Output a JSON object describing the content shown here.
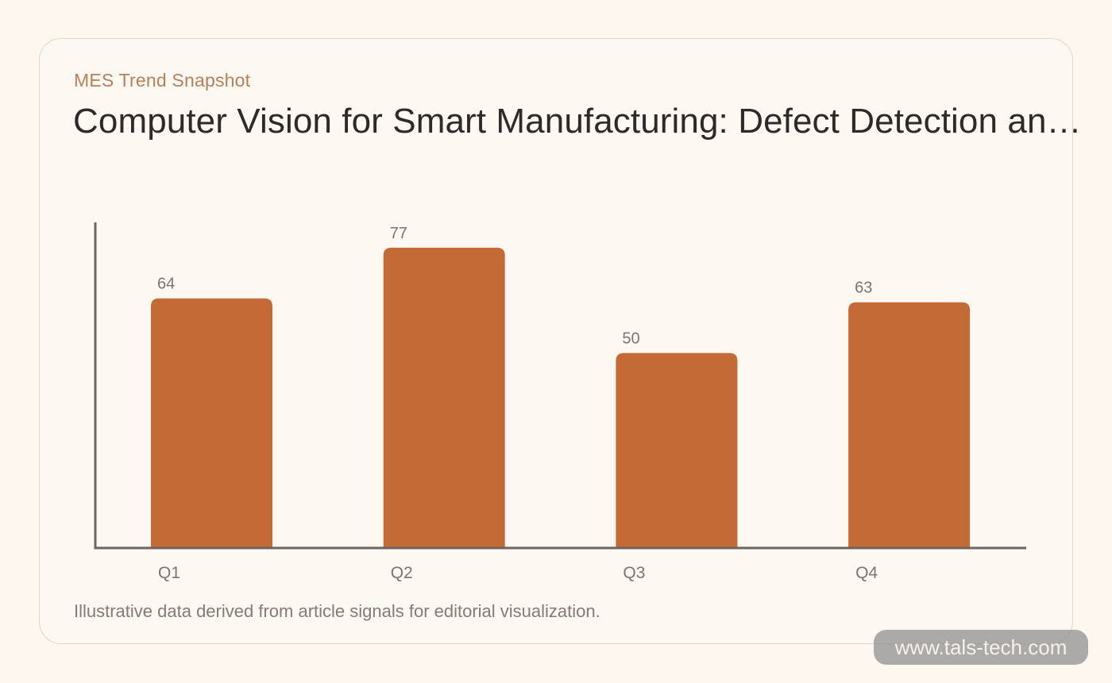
{
  "header": {
    "eyebrow": "MES Trend Snapshot",
    "title": "Computer Vision for Smart Manufacturing: Defect Detection and Process Optimization"
  },
  "footnote": "Illustrative data derived from article signals for editorial visualization.",
  "watermark": "www.tals-tech.com",
  "colors": {
    "bar": "#c46a37",
    "axis": "#6e645b",
    "background": "#fdf7f0",
    "eyebrow": "#b5805a"
  },
  "chart_data": {
    "type": "bar",
    "categories": [
      "Q1",
      "Q2",
      "Q3",
      "Q4"
    ],
    "values": [
      64,
      77,
      50,
      63
    ],
    "title": "",
    "xlabel": "",
    "ylabel": "",
    "grid": false,
    "legend": "none",
    "ylim": [
      0,
      83.5
    ]
  }
}
